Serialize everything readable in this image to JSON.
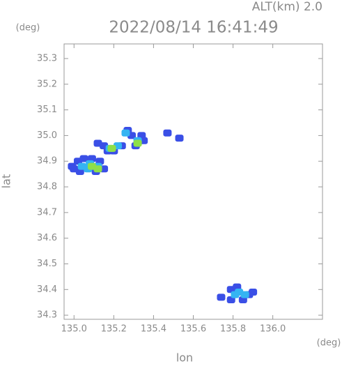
{
  "chart_data": {
    "type": "scatter",
    "title": "2022/08/14 16:41:49",
    "annotation": "ALT(km) 2.0",
    "y_unit": "(deg)",
    "x_unit": "(deg)",
    "ylabel": "lat",
    "xlabel": "lon",
    "xlim": [
      134.95,
      136.25
    ],
    "ylim": [
      34.284,
      35.357
    ],
    "xticks": [
      {
        "value": 135,
        "label": "135.0"
      },
      135.2,
      135.4,
      135.6,
      135.8,
      {
        "value": 136,
        "label": "136.0"
      }
    ],
    "yticks": [
      34.3,
      34.4,
      34.5,
      34.6,
      34.7,
      34.8,
      34.9,
      {
        "value": 35,
        "label": "35.0"
      },
      35.1,
      35.2,
      35.3
    ],
    "series": [
      {
        "color": "#3a4fe6",
        "x": [
          134.99,
          135.02,
          135.05,
          135.09,
          135.13,
          135.15,
          135.11,
          135.03,
          135.0,
          135.12,
          135.15,
          135.2,
          135.24,
          135.17,
          135.27,
          135.29,
          135.31,
          135.35,
          135.34,
          135.47,
          135.53,
          135.74,
          135.79,
          135.85,
          135.88,
          135.9,
          135.79,
          135.82
        ],
        "values": [
          34.88,
          34.9,
          34.91,
          34.91,
          34.9,
          34.87,
          34.86,
          34.86,
          34.87,
          34.97,
          34.96,
          34.94,
          34.96,
          34.94,
          35.02,
          35.0,
          34.96,
          34.98,
          35.0,
          35.01,
          34.99,
          34.37,
          34.36,
          34.36,
          34.38,
          34.39,
          34.4,
          34.41
        ]
      },
      {
        "color": "#35b4f2",
        "x": [
          135.04,
          135.08,
          135.12,
          135.07,
          135.18,
          135.22,
          135.26,
          135.32,
          135.83,
          135.86,
          135.81
        ],
        "values": [
          34.88,
          34.89,
          34.88,
          34.87,
          34.95,
          34.96,
          35.01,
          34.98,
          34.39,
          34.38,
          34.38
        ]
      },
      {
        "color": "#8ee048",
        "x": [
          135.09,
          135.12,
          135.19,
          135.32
        ],
        "values": [
          34.88,
          34.87,
          34.95,
          34.97
        ]
      }
    ]
  }
}
